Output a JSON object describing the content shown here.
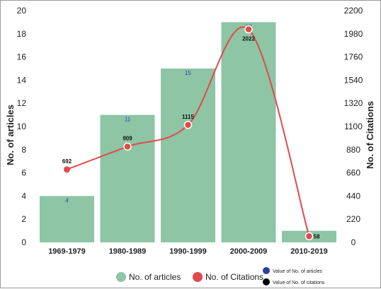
{
  "chart_data": {
    "type": "bar",
    "categories": [
      "1969-1979",
      "1980-1989",
      "1990-1999",
      "2000-2009",
      "2010-2019"
    ],
    "series": [
      {
        "name": "No. of articles",
        "type": "bar",
        "axis": "left",
        "values": [
          4,
          11,
          15,
          19,
          1
        ],
        "color": "#8dc5a5"
      },
      {
        "name": "No. of Citations",
        "type": "line",
        "axis": "right",
        "values": [
          692,
          909,
          1115,
          2022,
          58
        ],
        "color": "#e24a4a"
      }
    ],
    "ylabel": "No. of articles",
    "y2label": "No. of Citations",
    "ylim": [
      0,
      20
    ],
    "y2lim": [
      0,
      2200
    ],
    "yticks": [
      "0",
      "2",
      "4",
      "6",
      "8",
      "10",
      "12",
      "14",
      "16",
      "18",
      "20"
    ],
    "y2ticks": [
      "0",
      "220",
      "440",
      "660",
      "880",
      "1100",
      "1320",
      "1540",
      "1760",
      "1980",
      "2200"
    ],
    "legend": {
      "placement": "bottom",
      "items": [
        {
          "label": "No. of articles",
          "color": "#8dc5a5"
        },
        {
          "label": "No. of Citations",
          "color": "#e24a4a"
        },
        {
          "label": "Value of No. of articles",
          "color": "#2b3f9e"
        },
        {
          "label": "Value of No. of citations",
          "color": "#000000"
        }
      ]
    },
    "grid": false
  }
}
